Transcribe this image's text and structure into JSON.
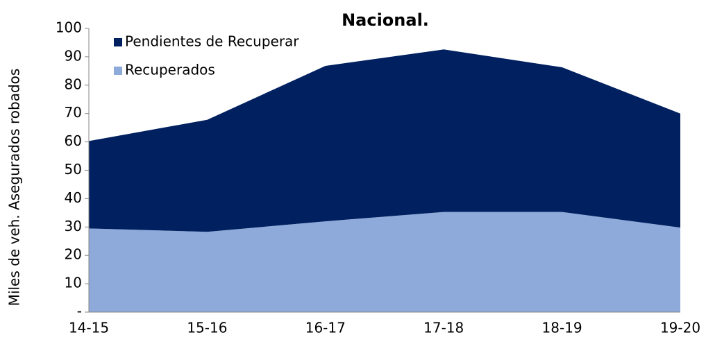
{
  "chart_data": {
    "type": "stacked-area",
    "title": "Nacional.",
    "ylabel": "Miles de veh. Asegurados robados",
    "categories": [
      "14-15",
      "15-16",
      "16-17",
      "17-18",
      "18-19",
      "19-20"
    ],
    "series": [
      {
        "name": "Recuperados",
        "color": "#8eaadb",
        "values": [
          29.5,
          28.3,
          32,
          35.3,
          35.3,
          29.8
        ]
      },
      {
        "name": "Pendientes de Recuperar",
        "color": "#002060",
        "values": [
          30.8,
          39.5,
          54.8,
          57.3,
          51,
          40.2
        ]
      }
    ],
    "ylim": [
      0,
      100
    ],
    "yticks": [
      {
        "value": 0,
        "label": "-"
      },
      10,
      20,
      30,
      40,
      50,
      60,
      70,
      80,
      90,
      100
    ],
    "legend": "top-left"
  }
}
